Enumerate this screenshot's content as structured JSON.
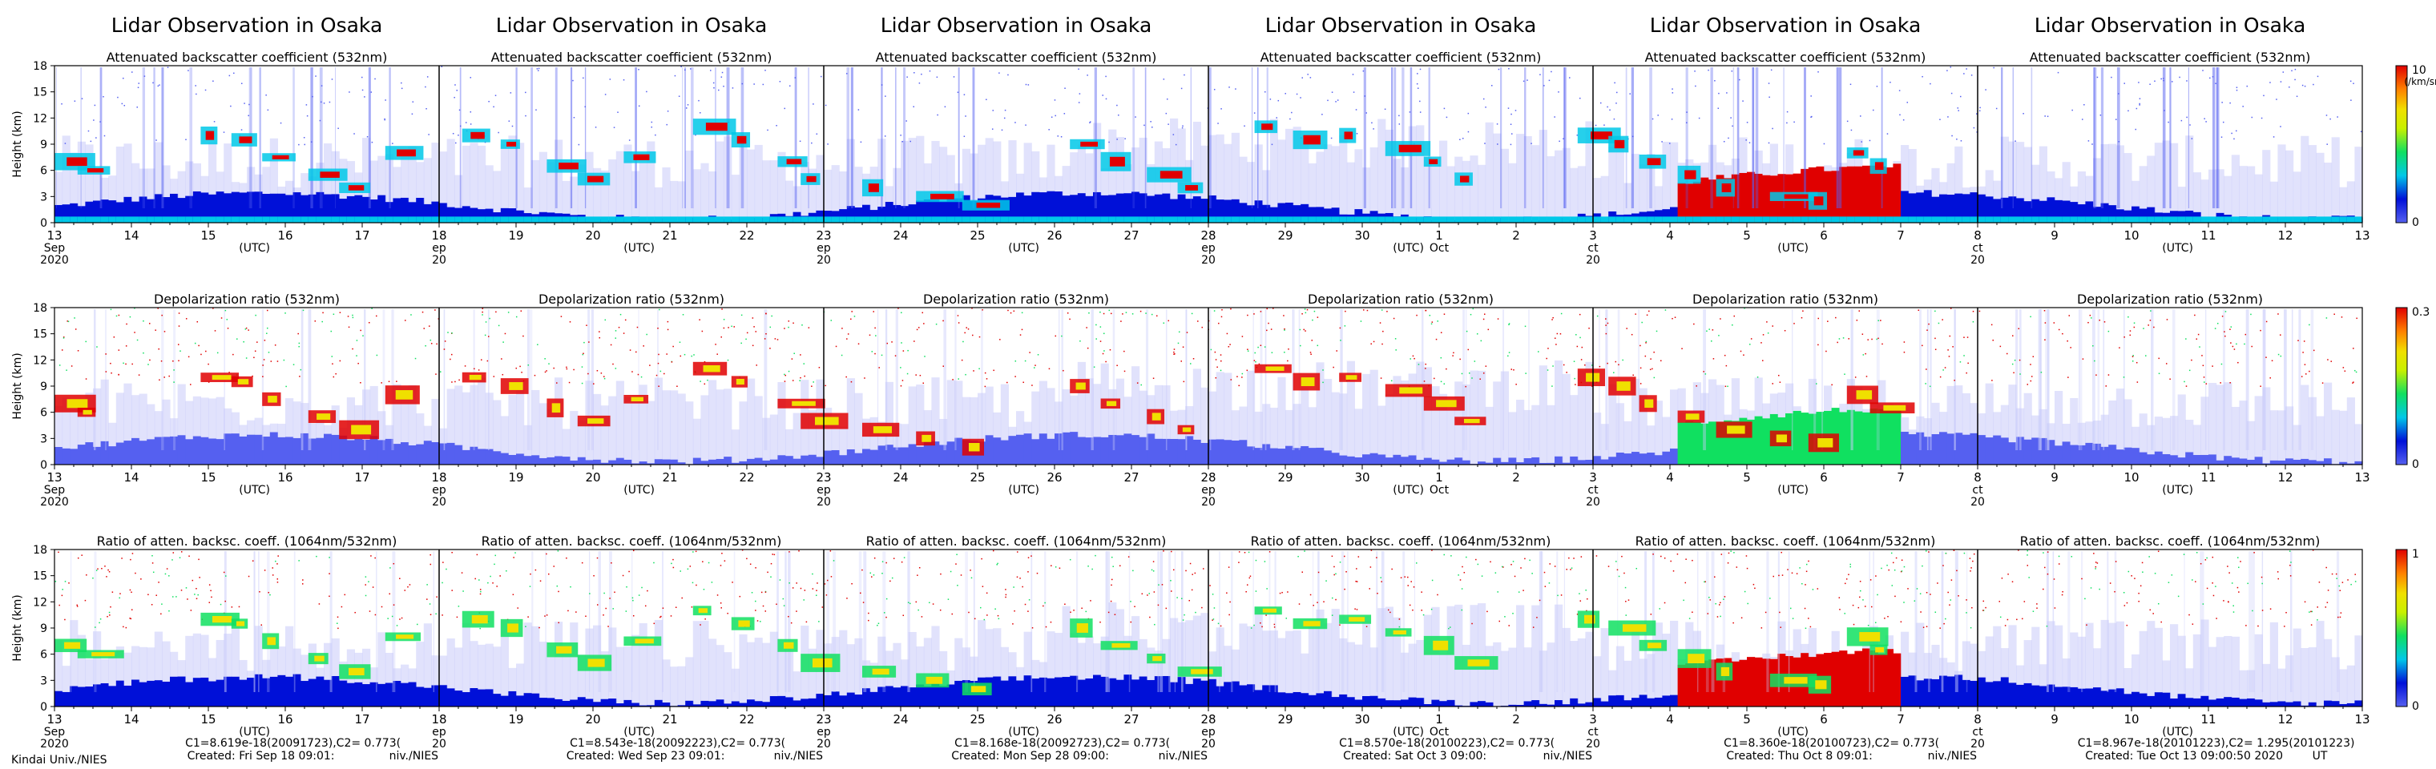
{
  "panel_titles": [
    "Lidar Observation in Osaka",
    "Lidar Observation in Osaka",
    "Lidar Observation in Osaka",
    "Lidar Observation in Osaka",
    "Lidar Observation in Osaka",
    "Lidar Observation in Osaka"
  ],
  "footer": {
    "left": "Kindai Univ./NIES",
    "panels": [
      {
        "calib": "C1=8.619e-18(20091723),C2= 0.773(",
        "created": "Created: Fri Sep 18 09:01:",
        "tail": "niv./NIES"
      },
      {
        "calib": "C1=8.543e-18(20092223),C2= 0.773(",
        "created": "Created: Wed Sep 23 09:01:",
        "tail": "niv./NIES"
      },
      {
        "calib": "C1=8.168e-18(20092723),C2= 0.773(",
        "created": "Created: Mon Sep 28 09:00:",
        "tail": "niv./NIES"
      },
      {
        "calib": "C1=8.570e-18(20100223),C2= 0.773(",
        "created": "Created: Sat Oct  3 09:00:",
        "tail": "niv./NIES"
      },
      {
        "calib": "C1=8.360e-18(20100723),C2= 0.773(",
        "created": "Created: Thu Oct  8 09:01:",
        "tail": "niv./NIES"
      },
      {
        "calib": "C1=8.967e-18(20101223),C2= 1.295(20101223)",
        "created": "Created: Tue Oct 13 09:00:50 2020",
        "tail": "UT"
      }
    ]
  },
  "colors": {
    "scale": [
      "#ffffff",
      "#c8cbfa",
      "#5560f0",
      "#0010d8",
      "#00c8e8",
      "#10e060",
      "#f0e000",
      "#ff8000",
      "#e00000"
    ]
  },
  "chart_data": [
    {
      "type": "heatmap",
      "row_key": "backscatter",
      "title": "Attenuated backscatter coefficient (532nm)",
      "ylabel": "Height (km)",
      "ylim": [
        0,
        18
      ],
      "yticks": [
        0,
        3,
        6,
        9,
        12,
        15,
        18
      ],
      "xlabel": "(UTC)",
      "colorbar": {
        "min": "0",
        "max": "10",
        "unit": "(/km/sr)"
      }
    },
    {
      "type": "heatmap",
      "row_key": "depolarization",
      "title": "Depolarization ratio (532nm)",
      "ylabel": "Height (km)",
      "ylim": [
        0,
        18
      ],
      "yticks": [
        0,
        3,
        6,
        9,
        12,
        15,
        18
      ],
      "xlabel": "(UTC)",
      "colorbar": {
        "min": "0",
        "max": "0.3",
        "unit": ""
      }
    },
    {
      "type": "heatmap",
      "row_key": "color_ratio",
      "title": "Ratio of atten. backsc. coeff. (1064nm/532nm)",
      "ylabel": "Height (km)",
      "ylim": [
        0,
        18
      ],
      "yticks": [
        0,
        3,
        6,
        9,
        12,
        15,
        18
      ],
      "xlabel": "(UTC)",
      "colorbar": {
        "min": "0",
        "max": "1",
        "unit": ""
      }
    }
  ],
  "time_axis": {
    "period": "13 Sep 2020 - 13 Oct 2020",
    "day_ticks": [
      "13",
      "14",
      "15",
      "16",
      "17",
      "18",
      "19",
      "20",
      "21",
      "22",
      "23",
      "24",
      "25",
      "26",
      "27",
      "28",
      "29",
      "30",
      "1",
      "2",
      "3",
      "4",
      "5",
      "6",
      "7",
      "8",
      "9",
      "10",
      "11",
      "12",
      "13"
    ],
    "boundary_labels": [
      {
        "day": "13",
        "month": "Sep",
        "year": "2020"
      },
      {
        "day": "18",
        "month": "ep",
        "year": "20"
      },
      {
        "day": "23",
        "month": "ep",
        "year": "20"
      },
      {
        "day": "28",
        "month": "ep",
        "year": "20"
      },
      {
        "day": "3",
        "month": "ct",
        "year": "20"
      },
      {
        "day": "8",
        "month": "ct",
        "year": "20"
      },
      {
        "day": "13",
        "month": "",
        "year": ""
      }
    ],
    "month_change": {
      "day": "1",
      "month": "Oct"
    }
  }
}
